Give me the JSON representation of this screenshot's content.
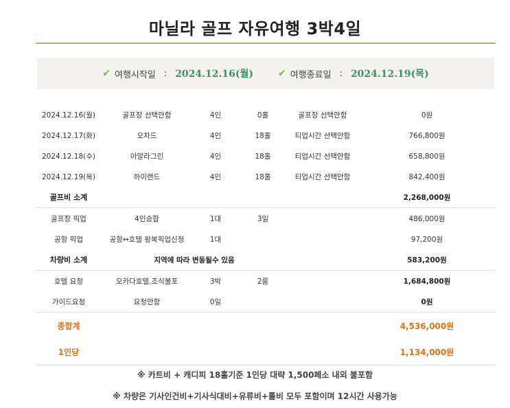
{
  "title": "마닐라 골프 자유여행  3박4일",
  "dates": {
    "start_label": "여행시작일",
    "start_value": "2024.12.16(월)",
    "end_label": "여행종료일",
    "end_value": "2024.12.19(목)",
    "separator": ":"
  },
  "golf_rows": [
    {
      "date": "2024.12.16(월)",
      "course": "골프장 선택안함",
      "people": "4인",
      "holes": "0홀",
      "tee": "골프장 선택안함",
      "price": "0원"
    },
    {
      "date": "2024.12.17(화)",
      "course": "오차드",
      "people": "4인",
      "holes": "18홀",
      "tee": "티업시간 선택안함",
      "price": "766,800원"
    },
    {
      "date": "2024.12.18(수)",
      "course": "아얄라그린",
      "people": "4인",
      "holes": "18홀",
      "tee": "티업시간 선택안함",
      "price": "658,800원"
    },
    {
      "date": "2024.12.19(목)",
      "course": "하이랜드",
      "people": "4인",
      "holes": "18홀",
      "tee": "티업시간 선택안함",
      "price": "842,400원"
    }
  ],
  "golf_subtotal": {
    "label": "골프비 소계",
    "price": "2,268,000원"
  },
  "vehicle_rows": [
    {
      "item": "골프장 픽업",
      "desc": "4인승합",
      "qty": "1대",
      "days": "3일",
      "price": "486,000원"
    },
    {
      "item": "공항 픽업",
      "desc": "공항↔호텔 왕복픽업신청",
      "qty": "1대",
      "days": "",
      "price": "97,200원"
    }
  ],
  "vehicle_subtotal": {
    "label": "차량비 소계",
    "note": "지역에 따라 변동될수 있음",
    "price": "583,200원"
  },
  "hotel_row": {
    "item": "호텔 요청",
    "desc": "오카다호텔.조식불포",
    "qty": "3박",
    "rooms": "2룸",
    "price": "1,684,800원"
  },
  "guide_row": {
    "item": "가이드요청",
    "desc": "요청안함",
    "qty": "0일",
    "price": "0원"
  },
  "total": {
    "label": "총합계",
    "price": "4,536,000원"
  },
  "per_person": {
    "label": "1인당",
    "price": "1,134,000원"
  },
  "notes": [
    "※ 카트비 + 캐디피 18홀기준 1인당 대략 1,500페소 내외 불포함",
    "※ 차량은 기사인건비+기사식대비+유류비+톨비 모두 포함이며 12시간 사용가능"
  ],
  "colors": {
    "accent_gold": "#c8a866",
    "date_green": "#3d8f63",
    "check_green": "#79b63a",
    "total_orange": "#d9741d"
  }
}
